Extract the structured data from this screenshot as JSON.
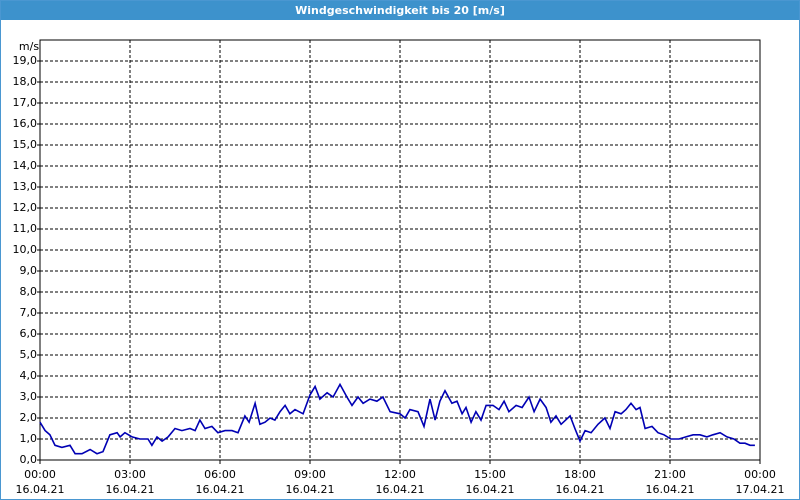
{
  "chart_data": {
    "type": "line",
    "title": "Windgeschwindigkeit bis 20 [m/s]",
    "y_label": "m/s",
    "color": "#0000b4",
    "grid": true,
    "xlim": [
      0,
      24
    ],
    "ylim": [
      0,
      20
    ],
    "xticks": [
      {
        "value": 0,
        "label": "00:00"
      },
      {
        "value": 3,
        "label": "03:00"
      },
      {
        "value": 6,
        "label": "06:00"
      },
      {
        "value": 9,
        "label": "09:00"
      },
      {
        "value": 12,
        "label": "12:00"
      },
      {
        "value": 15,
        "label": "15:00"
      },
      {
        "value": 18,
        "label": "18:00"
      },
      {
        "value": 21,
        "label": "21:00"
      },
      {
        "value": 24,
        "label": "00:00"
      }
    ],
    "xtick_dates": [
      "16.04.21",
      "16.04.21",
      "16.04.21",
      "16.04.21",
      "16.04.21",
      "16.04.21",
      "16.04.21",
      "16.04.21",
      "17.04.21"
    ],
    "yticks": [
      {
        "value": 0,
        "label": "0,0"
      },
      {
        "value": 1,
        "label": "1,0"
      },
      {
        "value": 2,
        "label": "2,0"
      },
      {
        "value": 3,
        "label": "3,0"
      },
      {
        "value": 4,
        "label": "4,0"
      },
      {
        "value": 5,
        "label": "5,0"
      },
      {
        "value": 6,
        "label": "6,0"
      },
      {
        "value": 7,
        "label": "7,0"
      },
      {
        "value": 8,
        "label": "8,0"
      },
      {
        "value": 9,
        "label": "9,0"
      },
      {
        "value": 10,
        "label": "10,0"
      },
      {
        "value": 11,
        "label": "11,0"
      },
      {
        "value": 12,
        "label": "12,0"
      },
      {
        "value": 13,
        "label": "13,0"
      },
      {
        "value": 14,
        "label": "14,0"
      },
      {
        "value": 15,
        "label": "15,0"
      },
      {
        "value": 16,
        "label": "16,0"
      },
      {
        "value": 17,
        "label": "17,0"
      },
      {
        "value": 18,
        "label": "18,0"
      },
      {
        "value": 19,
        "label": "19,0"
      }
    ],
    "x": [
      0,
      0.17,
      0.33,
      0.5,
      0.73,
      1.0,
      1.17,
      1.4,
      1.67,
      1.9,
      2.1,
      2.33,
      2.57,
      2.67,
      2.83,
      3.07,
      3.33,
      3.6,
      3.73,
      3.9,
      4.07,
      4.27,
      4.5,
      4.73,
      5.0,
      5.17,
      5.33,
      5.5,
      5.73,
      5.93,
      6.17,
      6.4,
      6.6,
      6.83,
      6.97,
      7.17,
      7.33,
      7.5,
      7.67,
      7.83,
      8.0,
      8.17,
      8.33,
      8.5,
      8.77,
      9.0,
      9.17,
      9.33,
      9.57,
      9.77,
      10.0,
      10.23,
      10.4,
      10.6,
      10.77,
      11.0,
      11.23,
      11.43,
      11.67,
      12.0,
      12.17,
      12.33,
      12.6,
      12.8,
      13.0,
      13.17,
      13.33,
      13.5,
      13.73,
      13.9,
      14.07,
      14.2,
      14.37,
      14.53,
      14.7,
      14.87,
      15.1,
      15.3,
      15.47,
      15.63,
      15.87,
      16.07,
      16.3,
      16.47,
      16.67,
      16.87,
      17.03,
      17.2,
      17.37,
      17.67,
      17.83,
      18.0,
      18.17,
      18.37,
      18.6,
      18.83,
      19.0,
      19.17,
      19.37,
      19.53,
      19.7,
      19.87,
      20.0,
      20.17,
      20.4,
      20.6,
      20.8,
      21.03,
      21.3,
      21.53,
      21.77,
      22.0,
      22.23,
      22.43,
      22.67,
      22.9,
      23.13,
      23.33,
      23.5,
      23.67,
      23.83
    ],
    "values": [
      1.8,
      1.4,
      1.2,
      0.7,
      0.6,
      0.7,
      0.3,
      0.3,
      0.5,
      0.3,
      0.4,
      1.2,
      1.3,
      1.1,
      1.3,
      1.1,
      1.0,
      1.0,
      0.7,
      1.1,
      0.9,
      1.1,
      1.5,
      1.4,
      1.5,
      1.4,
      1.9,
      1.5,
      1.6,
      1.3,
      1.4,
      1.4,
      1.3,
      2.1,
      1.8,
      2.7,
      1.7,
      1.8,
      2.0,
      1.9,
      2.3,
      2.6,
      2.2,
      2.4,
      2.2,
      3.1,
      3.5,
      2.9,
      3.2,
      3.0,
      3.6,
      3.0,
      2.6,
      3.0,
      2.7,
      2.9,
      2.8,
      3.0,
      2.3,
      2.2,
      2.0,
      2.4,
      2.3,
      1.6,
      2.9,
      1.9,
      2.8,
      3.3,
      2.7,
      2.8,
      2.2,
      2.5,
      1.8,
      2.3,
      1.9,
      2.6,
      2.6,
      2.4,
      2.8,
      2.3,
      2.6,
      2.5,
      3.0,
      2.3,
      2.9,
      2.5,
      1.8,
      2.1,
      1.7,
      2.1,
      1.5,
      0.9,
      1.4,
      1.3,
      1.7,
      2.0,
      1.5,
      2.3,
      2.2,
      2.4,
      2.7,
      2.4,
      2.5,
      1.5,
      1.6,
      1.3,
      1.2,
      1.0,
      1.0,
      1.1,
      1.2,
      1.2,
      1.1,
      1.2,
      1.3,
      1.1,
      1.0,
      0.8,
      0.8,
      0.7,
      0.7
    ]
  }
}
